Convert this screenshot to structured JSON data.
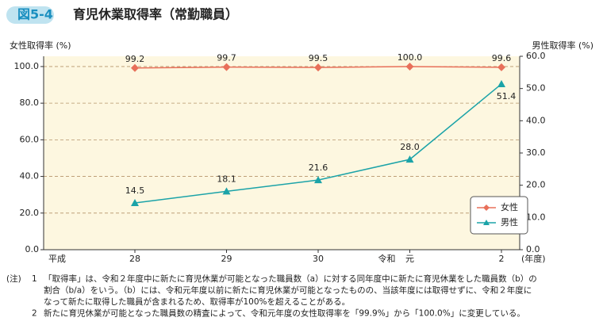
{
  "header": {
    "badge": "図5-4",
    "title": "育児休業取得率（常勤職員）"
  },
  "chart_data": {
    "type": "line",
    "y_label": "女性取得率 (%)",
    "y2_label": "男性取得率 (%)",
    "categories": [
      "28",
      "29",
      "30",
      "元",
      "2"
    ],
    "x_era_start": "平成",
    "x_era_change": "令和",
    "x_unit": "(年度)",
    "series": [
      {
        "name": "女性",
        "color": "#e8705a",
        "marker": "diamond",
        "values": [
          99.2,
          99.7,
          99.5,
          100.0,
          99.6
        ],
        "value_labels": [
          "99.2",
          "99.7",
          "99.5",
          "100.0",
          "99.6"
        ]
      },
      {
        "name": "男性",
        "color": "#1ba3a8",
        "marker": "triangle",
        "axis": "y2",
        "values": [
          14.5,
          18.1,
          21.6,
          28.0,
          51.4
        ],
        "value_labels": [
          "14.5",
          "18.1",
          "21.6",
          "28.0",
          "51.4"
        ]
      }
    ],
    "ylim": [
      0,
      105.6
    ],
    "yticks": [
      {
        "value": 0,
        "label": "0.0"
      },
      {
        "value": 20,
        "label": "20.0"
      },
      {
        "value": 40,
        "label": "40.0"
      },
      {
        "value": 60,
        "label": "60.0"
      },
      {
        "value": 80,
        "label": "80.0"
      },
      {
        "value": 100,
        "label": "100.0"
      }
    ],
    "y2lim": [
      0,
      60
    ],
    "y2ticks": [
      {
        "value": 0,
        "label": "0.0"
      },
      {
        "value": 10,
        "label": "10.0"
      },
      {
        "value": 20,
        "label": "20.0"
      },
      {
        "value": 30,
        "label": "30.0"
      },
      {
        "value": 40,
        "label": "40.0"
      },
      {
        "value": 50,
        "label": "50.0"
      },
      {
        "value": 60,
        "label": "60.0"
      }
    ],
    "grid": true,
    "legend": "lower right"
  },
  "notes": {
    "marker": "(注)",
    "items": [
      {
        "number": "1",
        "lines": [
          "「取得率」は、令和２年度中に新たに育児休業が可能となった職員数（a）に対する同年度中に新たに育児休業をした職員数（b）の",
          "割合（b/a）をいう。（b）には、令和元年度以前に新たに育児休業が可能となったものの、当該年度には取得せずに、令和２年度に",
          "なって新たに取得した職員が含まれるため、取得率が100%を超えることがある。"
        ]
      },
      {
        "number": "2",
        "lines": [
          "新たに育児休業が可能となった職員数の精査によって、令和元年度の女性取得率を「99.9%」から「100.0%」に変更している。"
        ]
      }
    ]
  }
}
